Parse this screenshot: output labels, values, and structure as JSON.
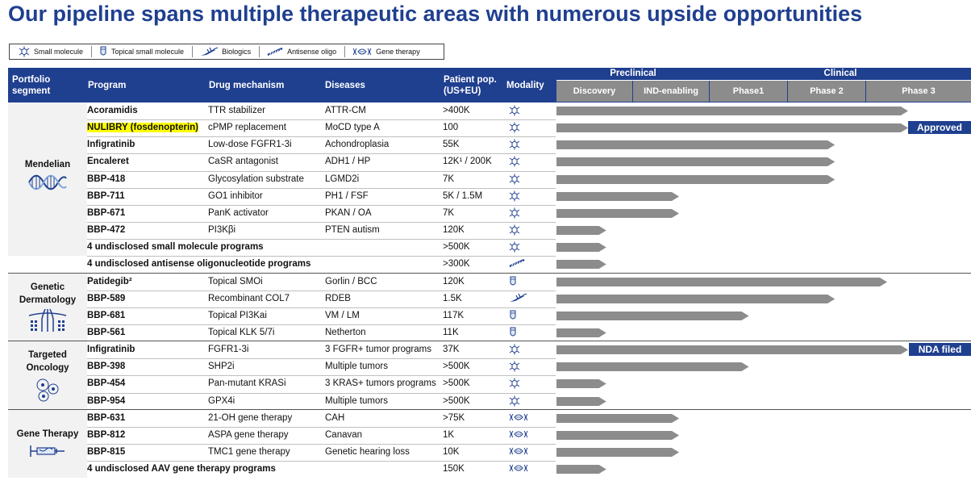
{
  "title": "Our pipeline spans multiple therapeutic areas with numerous upside opportunities",
  "legend": [
    {
      "icon": "small-molecule-icon",
      "label": "Small molecule"
    },
    {
      "icon": "topical-small-molecule-icon",
      "label": "Topical small molecule"
    },
    {
      "icon": "biologics-icon",
      "label": "Biologics"
    },
    {
      "icon": "antisense-oligo-icon",
      "label": "Antisense oligo"
    },
    {
      "icon": "gene-therapy-icon",
      "label": "Gene therapy"
    }
  ],
  "header": {
    "segment_line1": "Portfolio",
    "segment_line2": "segment",
    "program": "Program",
    "mechanism": "Drug mechanism",
    "diseases": "Diseases",
    "pop_line1": "Patient pop.",
    "pop_line2": "(US+EU)",
    "modality": "Modality",
    "preclinical": "Preclinical",
    "clinical": "Clinical",
    "phases": [
      "Discovery",
      "IND-enabling",
      "Phase1",
      "Phase 2",
      "Phase 3"
    ]
  },
  "colors": {
    "header": "#1f3f8f",
    "phase": "#8c8c8c",
    "bar": "#8c8c8c",
    "icon": "#1f3f8f",
    "highlight": "#ffff00"
  },
  "segments": [
    {
      "name": "Mendelian",
      "icon": "dna-helix-icon",
      "rows": [
        0,
        8
      ]
    },
    {
      "name": "Genetic Dermatology",
      "icon": "skin-follicle-icon",
      "rows": [
        10,
        13
      ]
    },
    {
      "name": "Targeted Oncology",
      "icon": "tumor-cells-icon",
      "rows": [
        14,
        17
      ]
    },
    {
      "name": "Gene Therapy",
      "icon": "syringe-icon",
      "rows": [
        18,
        21
      ]
    }
  ],
  "programs": [
    {
      "program": "Acoramidis",
      "mechanism": "TTR stabilizer",
      "disease": "ATTR-CM",
      "pop": ">400K",
      "modality": "small",
      "stage": 5.0
    },
    {
      "program": "NULIBRY (fosdenopterin)",
      "mechanism": "cPMP replacement",
      "disease": "MoCD type A",
      "pop": "100",
      "modality": "small",
      "stage": 5.0,
      "highlight": true,
      "badge": "Approved"
    },
    {
      "program": "Infigratinib",
      "mechanism": "Low-dose FGFR1-3i",
      "disease": "Achondroplasia",
      "pop": "55K",
      "modality": "small",
      "stage": 3.6
    },
    {
      "program": "Encaleret",
      "mechanism": "CaSR antagonist",
      "disease": "ADH1 / HP",
      "pop": "12K¹ / 200K",
      "modality": "small",
      "stage": 3.6
    },
    {
      "program": "BBP-418",
      "mechanism": "Glycosylation substrate",
      "disease": "LGMD2i",
      "pop": "7K",
      "modality": "small",
      "stage": 3.6
    },
    {
      "program": "BBP-711",
      "mechanism": "GO1 inhibitor",
      "disease": "PH1 / FSF",
      "pop": "5K / 1.5M",
      "modality": "small",
      "stage": 1.6
    },
    {
      "program": "BBP-671",
      "mechanism": "PanK activator",
      "disease": "PKAN / OA",
      "pop": "7K",
      "modality": "small",
      "stage": 1.6
    },
    {
      "program": "BBP-472",
      "mechanism": "PI3Kβi",
      "disease": "PTEN autism",
      "pop": "120K",
      "modality": "small",
      "stage": 0.65
    },
    {
      "program": "4 undisclosed small molecule programs",
      "mechanism": "",
      "disease": "",
      "pop": ">500K",
      "modality": "small",
      "stage": 0.65
    },
    {
      "program": "4 undisclosed antisense oligonucleotide programs",
      "mechanism": "",
      "disease": "",
      "pop": ">300K",
      "modality": "aso",
      "stage": 0.65
    },
    {
      "program": "Patidegib²",
      "mechanism": "Topical SMOi",
      "disease": "Gorlin / BCC",
      "pop": "120K",
      "modality": "topical",
      "stage": 4.5
    },
    {
      "program": "BBP-589",
      "mechanism": "Recombinant COL7",
      "disease": "RDEB",
      "pop": "1.5K",
      "modality": "biologic",
      "stage": 3.6
    },
    {
      "program": "BBP-681",
      "mechanism": "Topical PI3Kai",
      "disease": "VM / LM",
      "pop": "117K",
      "modality": "topical",
      "stage": 2.5
    },
    {
      "program": "BBP-561",
      "mechanism": "Topical KLK 5/7i",
      "disease": "Netherton",
      "pop": "11K",
      "modality": "topical",
      "stage": 0.65
    },
    {
      "program": "Infigratinib",
      "mechanism": "FGFR1-3i",
      "disease": "3 FGFR+ tumor programs",
      "pop": "37K",
      "modality": "small",
      "stage": 5.0,
      "badge": "NDA filed"
    },
    {
      "program": "BBP-398",
      "mechanism": "SHP2i",
      "disease": "Multiple tumors",
      "pop": ">500K",
      "modality": "small",
      "stage": 2.5
    },
    {
      "program": "BBP-454",
      "mechanism": "Pan-mutant KRASi",
      "disease": "3 KRAS+ tumors programs",
      "pop": ">500K",
      "modality": "small",
      "stage": 0.65
    },
    {
      "program": "BBP-954",
      "mechanism": "GPX4i",
      "disease": "Multiple tumors",
      "pop": ">500K",
      "modality": "small",
      "stage": 0.65
    },
    {
      "program": "BBP-631",
      "mechanism": "21-OH gene therapy",
      "disease": "CAH",
      "pop": ">75K",
      "modality": "gene",
      "stage": 1.6
    },
    {
      "program": "BBP-812",
      "mechanism": "ASPA gene therapy",
      "disease": "Canavan",
      "pop": "1K",
      "modality": "gene",
      "stage": 1.6
    },
    {
      "program": "BBP-815",
      "mechanism": "TMC1 gene therapy",
      "disease": "Genetic hearing loss",
      "pop": "10K",
      "modality": "gene",
      "stage": 1.6
    },
    {
      "program": "4 undisclosed AAV gene therapy programs",
      "mechanism": "",
      "disease": "",
      "pop": "150K",
      "modality": "gene",
      "stage": 0.65
    }
  ]
}
